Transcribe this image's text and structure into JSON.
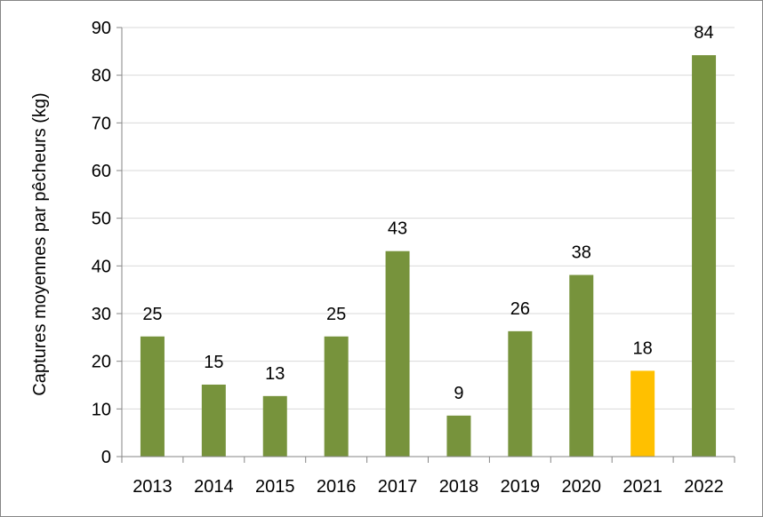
{
  "chart_data": {
    "type": "bar",
    "title": "",
    "xlabel": "",
    "ylabel": "Captures moyennes par pêcheurs (kg)",
    "categories": [
      "2013",
      "2014",
      "2015",
      "2016",
      "2017",
      "2018",
      "2019",
      "2020",
      "2021",
      "2022"
    ],
    "values": [
      25,
      15,
      13,
      25,
      43,
      9,
      26,
      38,
      18,
      84
    ],
    "bar_heights": [
      25.2,
      15.1,
      12.7,
      25.2,
      43.1,
      8.6,
      26.3,
      38.1,
      18.0,
      84.2
    ],
    "data_labels": [
      "25",
      "15",
      "13",
      "25",
      "43",
      "9",
      "26",
      "38",
      "18",
      "84"
    ],
    "ylim": [
      0,
      90
    ],
    "yticks": [
      0,
      10,
      20,
      30,
      40,
      50,
      60,
      70,
      80,
      90
    ],
    "grid": true,
    "legend": "none",
    "colors": {
      "bar": "#77933C",
      "highlight": "#FFC000",
      "grid": "#D9D9D9",
      "axis": "#868686"
    },
    "highlight_index": 8
  }
}
